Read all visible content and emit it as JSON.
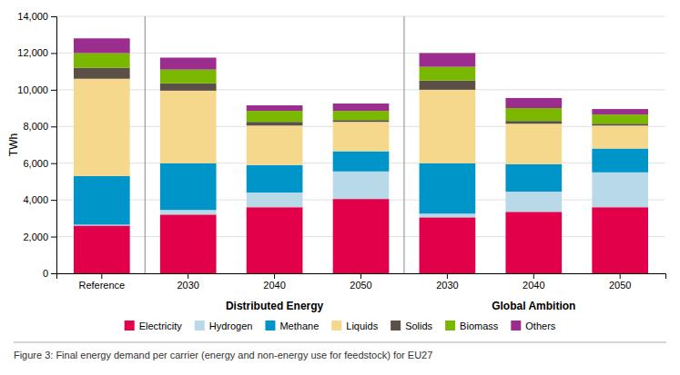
{
  "chart_data": {
    "type": "bar",
    "stacked": true,
    "ylabel": "TWh",
    "caption": "Figure 3: Final energy demand per carrier (energy and non-energy use for feedstock) for EU27",
    "categories": [
      "Reference",
      "2030",
      "2040",
      "2050",
      "2030",
      "2040",
      "2050"
    ],
    "series": [
      {
        "name": "Electricity",
        "color": "#e2004a",
        "values": [
          2600,
          3200,
          3600,
          4050,
          3050,
          3350,
          3600
        ]
      },
      {
        "name": "Hydrogen",
        "color": "#b8d9e8",
        "values": [
          50,
          250,
          800,
          1500,
          200,
          1100,
          1900
        ]
      },
      {
        "name": "Methane",
        "color": "#0095c8",
        "values": [
          2650,
          2550,
          1500,
          1100,
          2750,
          1500,
          1300
        ]
      },
      {
        "name": "Liquids",
        "color": "#f5d88c",
        "values": [
          5300,
          3950,
          2150,
          1600,
          4000,
          2200,
          1250
        ]
      },
      {
        "name": "Solids",
        "color": "#5a5048",
        "values": [
          600,
          400,
          200,
          100,
          500,
          150,
          100
        ]
      },
      {
        "name": "Biomass",
        "color": "#7ab800",
        "values": [
          800,
          750,
          600,
          500,
          750,
          700,
          500
        ]
      },
      {
        "name": "Others",
        "color": "#9b2d8e",
        "values": [
          800,
          650,
          300,
          400,
          750,
          550,
          300
        ]
      }
    ],
    "annotations": [
      {
        "text": "Distributed Energy",
        "x": 2
      },
      {
        "text": "Global Ambition",
        "x": 5
      }
    ],
    "ylim": [
      0,
      14000
    ],
    "yticks": [
      0,
      {
        "value": 2000,
        "label": "2,000"
      },
      {
        "value": 4000,
        "label": "4,000"
      },
      {
        "value": 6000,
        "label": "6,000"
      },
      {
        "value": 8000,
        "label": "8,000"
      },
      {
        "value": 10000,
        "label": "10,000"
      },
      {
        "value": 12000,
        "label": "12,000"
      },
      {
        "value": 14000,
        "label": "14,000"
      }
    ],
    "grid": true,
    "legend": "bottom"
  }
}
